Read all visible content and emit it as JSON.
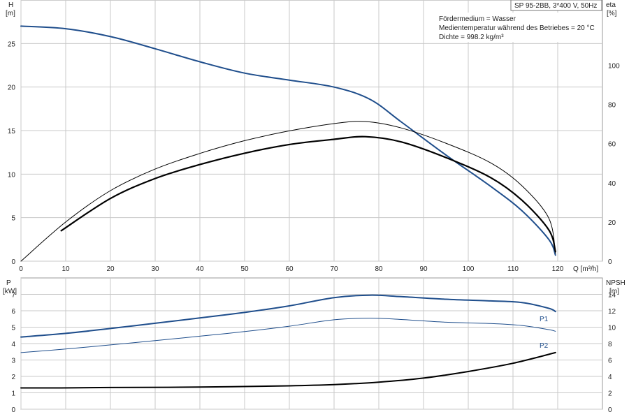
{
  "title": "SP 95-2BB, 3*400 V, 50Hz",
  "info": [
    "Fördermedium = Wasser",
    "Medientemperatur während des Betriebes = 20 °C",
    "Dichte = 998.2 kg/m³"
  ],
  "chart_data": [
    {
      "type": "line",
      "xlabel": "Q [m³/h]",
      "ylabel": "H",
      "ylabel_unit": "[m]",
      "y2label": "eta",
      "y2label_unit": "[%]",
      "xlim": [
        0,
        130
      ],
      "ylim": [
        0,
        30
      ],
      "y2lim": [
        0,
        133.3
      ],
      "grid": true,
      "x_ticks": [
        0,
        10,
        20,
        30,
        40,
        50,
        60,
        70,
        80,
        90,
        100,
        110,
        120
      ],
      "y_ticks": [
        0,
        5,
        10,
        15,
        20,
        25
      ],
      "y2_ticks": [
        0,
        20,
        40,
        60,
        80,
        100
      ],
      "series": [
        {
          "axis": "left",
          "color": "#1f4e8c",
          "width": 2,
          "x": [
            0,
            10,
            20,
            30,
            40,
            50,
            60,
            70,
            78,
            85,
            95,
            105,
            112,
            118,
            119.5
          ],
          "y": [
            27.0,
            26.7,
            25.8,
            24.4,
            22.9,
            21.6,
            20.8,
            20.0,
            18.6,
            16.0,
            12.2,
            8.6,
            5.8,
            2.5,
            0.7
          ]
        },
        {
          "axis": "left",
          "color": "#000000",
          "width": 2.2,
          "x": [
            9,
            20,
            30,
            40,
            50,
            60,
            70,
            77,
            85,
            95,
            105,
            112,
            118,
            119.5
          ],
          "y": [
            3.5,
            7.2,
            9.5,
            11.1,
            12.4,
            13.4,
            14.0,
            14.3,
            13.7,
            11.9,
            9.6,
            7.0,
            3.6,
            1.1
          ]
        },
        {
          "axis": "right",
          "color": "#000000",
          "width": 1,
          "x": [
            0,
            10,
            20,
            30,
            40,
            50,
            60,
            70,
            77,
            85,
            95,
            105,
            112,
            118,
            119.5
          ],
          "y": [
            0,
            20,
            36,
            47,
            55,
            61.5,
            66.5,
            70.2,
            71.3,
            68,
            60.2,
            50.2,
            38.5,
            22,
            4
          ]
        }
      ]
    },
    {
      "type": "line",
      "ylabel": "P",
      "ylabel_unit": "[kW]",
      "y2label": "NPSH",
      "y2label_unit": "[m]",
      "xlim": [
        0,
        130
      ],
      "ylim": [
        0,
        8
      ],
      "y2lim": [
        0,
        16
      ],
      "grid": true,
      "y_ticks": [
        0,
        1,
        2,
        3,
        4,
        5,
        6,
        7
      ],
      "y2_ticks": [
        0,
        2,
        4,
        6,
        8,
        10,
        12,
        14
      ],
      "series": [
        {
          "name": "P1",
          "axis": "left",
          "color": "#1f4e8c",
          "width": 2,
          "x": [
            0,
            10,
            20,
            30,
            40,
            50,
            60,
            70,
            78,
            85,
            95,
            105,
            112,
            118,
            119.5
          ],
          "y": [
            4.4,
            4.62,
            4.92,
            5.24,
            5.56,
            5.9,
            6.3,
            6.8,
            6.95,
            6.86,
            6.7,
            6.6,
            6.5,
            6.15,
            5.95
          ]
        },
        {
          "name": "P2",
          "axis": "left",
          "color": "#1f4e8c",
          "width": 1,
          "x": [
            0,
            10,
            20,
            30,
            40,
            50,
            60,
            70,
            78,
            85,
            95,
            105,
            112,
            118,
            119.5
          ],
          "y": [
            3.45,
            3.67,
            3.92,
            4.18,
            4.45,
            4.73,
            5.06,
            5.45,
            5.55,
            5.47,
            5.3,
            5.22,
            5.1,
            4.85,
            4.75
          ]
        },
        {
          "axis": "right",
          "color": "#000000",
          "width": 2,
          "x": [
            0,
            9,
            20,
            40,
            60,
            70,
            80,
            90,
            100,
            110,
            119.5
          ],
          "y": [
            2.6,
            2.6,
            2.65,
            2.7,
            2.85,
            3.0,
            3.3,
            3.8,
            4.6,
            5.6,
            6.9
          ]
        }
      ]
    }
  ]
}
